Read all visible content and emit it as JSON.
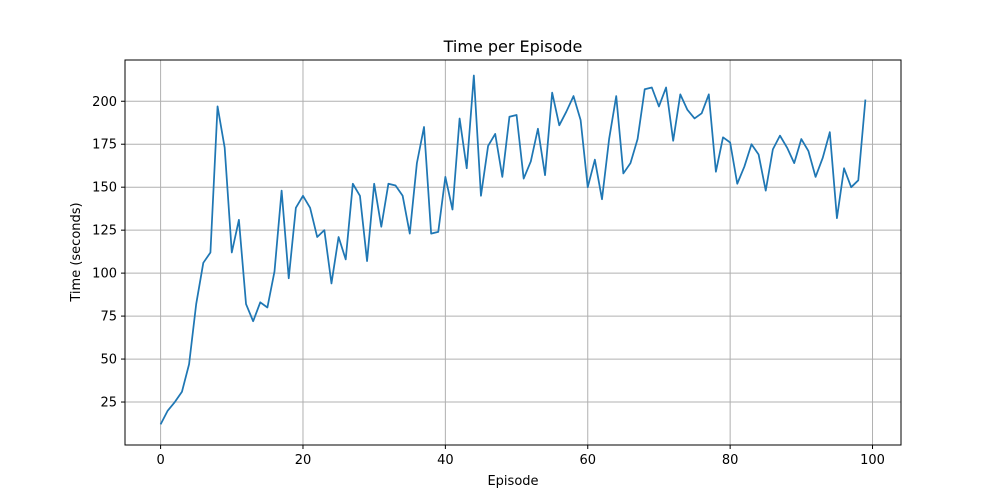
{
  "chart_data": {
    "type": "line",
    "title": "Time per Episode",
    "xlabel": "Episode",
    "ylabel": "Time (seconds)",
    "xlim": [
      -5,
      104
    ],
    "ylim": [
      0,
      224
    ],
    "xticks": [
      0,
      20,
      40,
      60,
      80,
      100
    ],
    "yticks": [
      25,
      50,
      75,
      100,
      125,
      150,
      175,
      200
    ],
    "grid": true,
    "line_color": "#1f77b4",
    "x": [
      0,
      1,
      2,
      3,
      4,
      5,
      6,
      7,
      8,
      9,
      10,
      11,
      12,
      13,
      14,
      15,
      16,
      17,
      18,
      19,
      20,
      21,
      22,
      23,
      24,
      25,
      26,
      27,
      28,
      29,
      30,
      31,
      32,
      33,
      34,
      35,
      36,
      37,
      38,
      39,
      40,
      41,
      42,
      43,
      44,
      45,
      46,
      47,
      48,
      49,
      50,
      51,
      52,
      53,
      54,
      55,
      56,
      57,
      58,
      59,
      60,
      61,
      62,
      63,
      64,
      65,
      66,
      67,
      68,
      69,
      70,
      71,
      72,
      73,
      74,
      75,
      76,
      77,
      78,
      79,
      80,
      81,
      82,
      83,
      84,
      85,
      86,
      87,
      88,
      89,
      90,
      91,
      92,
      93,
      94,
      95,
      96,
      97,
      98,
      99
    ],
    "y": [
      12,
      20,
      25,
      31,
      47,
      82,
      106,
      112,
      197,
      173,
      112,
      131,
      82,
      72,
      83,
      80,
      101,
      148,
      97,
      138,
      145,
      138,
      121,
      125,
      94,
      121,
      108,
      152,
      145,
      107,
      152,
      127,
      152,
      151,
      145,
      123,
      164,
      185,
      123,
      124,
      156,
      137,
      190,
      161,
      215,
      145,
      174,
      181,
      156,
      191,
      192,
      155,
      165,
      184,
      157,
      205,
      186,
      194,
      203,
      189,
      150,
      166,
      143,
      178,
      203,
      158,
      164,
      178,
      207,
      208,
      197,
      208,
      177,
      204,
      195,
      190,
      193,
      204,
      159,
      179,
      176,
      152,
      162,
      175,
      169,
      148,
      172,
      180,
      173,
      164,
      178,
      171,
      156,
      167,
      182,
      132,
      161,
      150,
      154,
      201
    ]
  }
}
